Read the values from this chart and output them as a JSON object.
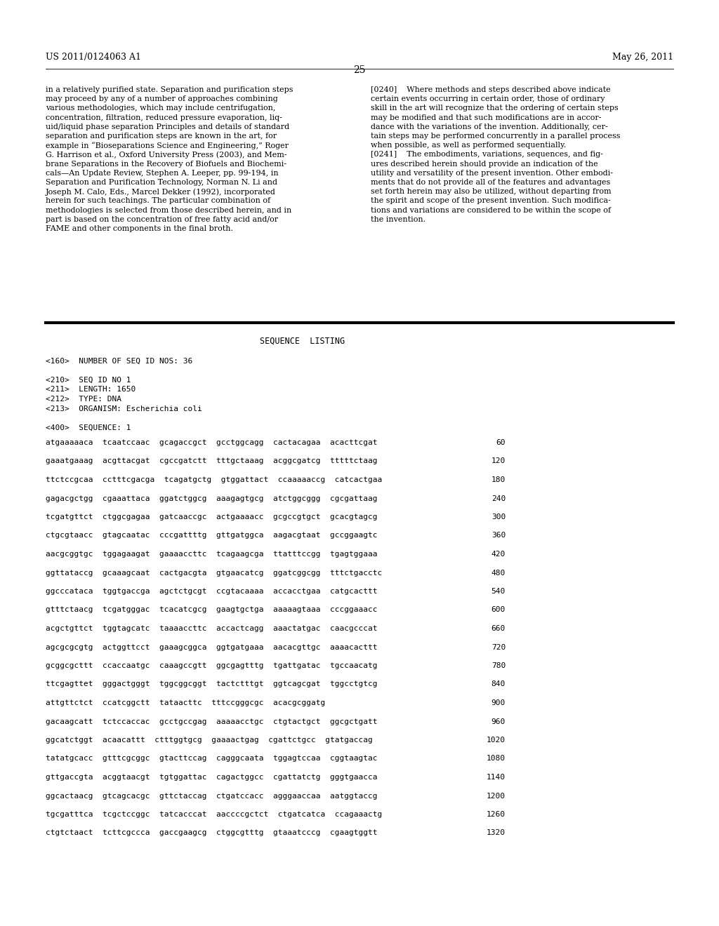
{
  "background_color": "#ffffff",
  "header_left": "US 2011/0124063 A1",
  "header_right": "May 26, 2011",
  "page_number": "25",
  "left_col_text": [
    "in a relatively purified state. Separation and purification steps",
    "may proceed by any of a number of approaches combining",
    "various methodologies, which may include centrifugation,",
    "concentration, filtration, reduced pressure evaporation, liq-",
    "uid/liquid phase separation Principles and details of standard",
    "separation and purification steps are known in the art, for",
    "example in “Bioseparations Science and Engineering,” Roger",
    "G. Harrison et al., Oxford University Press (2003), and Mem-",
    "brane Separations in the Recovery of Biofuels and Biochemi-",
    "cals—An Update Review, Stephen A. Leeper, pp. 99-194, in",
    "Separation and Purification Technology, Norman N. Li and",
    "Joseph M. Calo, Eds., Marcel Dekker (1992), incorporated",
    "herein for such teachings. The particular combination of",
    "methodologies is selected from those described herein, and in",
    "part is based on the concentration of free fatty acid and/or",
    "FAME and other components in the final broth."
  ],
  "right_col_text": [
    "[0240]    Where methods and steps described above indicate",
    "certain events occurring in certain order, those of ordinary",
    "skill in the art will recognize that the ordering of certain steps",
    "may be modified and that such modifications are in accor-",
    "dance with the variations of the invention. Additionally, cer-",
    "tain steps may be performed concurrently in a parallel process",
    "when possible, as well as performed sequentially.",
    "[0241]    The embodiments, variations, sequences, and fig-",
    "ures described herein should provide an indication of the",
    "utility and versatility of the present invention. Other embodi-",
    "ments that do not provide all of the features and advantages",
    "set forth herein may also be utilized, without departing from",
    "the spirit and scope of the present invention. Such modifica-",
    "tions and variations are considered to be within the scope of",
    "the invention."
  ],
  "seq_listing_header": "SEQUENCE  LISTING",
  "seq_meta": [
    "<160>  NUMBER OF SEQ ID NOS: 36",
    "",
    "<210>  SEQ ID NO 1",
    "<211>  LENGTH: 1650",
    "<212>  TYPE: DNA",
    "<213>  ORGANISM: Escherichia coli",
    "",
    "<400>  SEQUENCE: 1"
  ],
  "seq_data": [
    [
      "atgaaaaaca  tcaatccaac  gcagaccgct  gcctggcagg  cactacagaa  acacttcgat",
      "60"
    ],
    [
      "gaaatgaaag  acgttacgat  cgccgatctt  tttgctaaag  acggcgatcg  tttttctaag",
      "120"
    ],
    [
      "ttctccgcaa  cctttcgacga  tcagatgctg  gtggattact  ccaaaaaccg  catcactgaa",
      "180"
    ],
    [
      "gagacgctgg  cgaaattaca  ggatctggcg  aaagagtgcg  atctggcggg  cgcgattaag",
      "240"
    ],
    [
      "tcgatgttct  ctggcgagaa  gatcaaccgc  actgaaaacc  gcgccgtgct  gcacgtagcg",
      "300"
    ],
    [
      "ctgcgtaacc  gtagcaatac  cccgattttg  gttgatggca  aagacgtaat  gccggaagtc",
      "360"
    ],
    [
      "aacgcggtgc  tggagaagat  gaaaaccttc  tcagaagcga  ttatttccgg  tgagtggaaa",
      "420"
    ],
    [
      "ggttataccg  gcaaagcaat  cactgacgta  gtgaacatcg  ggatcggcgg  tttctgacctc",
      "480"
    ],
    [
      "ggcccataca  tggtgaccga  agctctgcgt  ccgtacaaaa  accacctgaa  catgcacttt",
      "540"
    ],
    [
      "gtttctaacg  tcgatgggac  tcacatcgcg  gaagtgctga  aaaaagtaaa  cccggaaacc",
      "600"
    ],
    [
      "acgctgttct  tggtagcatc  taaaaccttc  accactcagg  aaactatgac  caacgcccat",
      "660"
    ],
    [
      "agcgcgcgtg  actggttcct  gaaagcggca  ggtgatgaaa  aacacgttgc  aaaacacttt",
      "720"
    ],
    [
      "gcggcgcttt  ccaccaatgc  caaagccgtt  ggcgagtttg  tgattgatac  tgccaacatg",
      "780"
    ],
    [
      "ttcgagttet  gggactgggt  tggcggcggt  tactctttgt  ggtcagcgat  tggcctgtcg",
      "840"
    ],
    [
      "attgttctct  ccatcggctt  tataacttc  tttccgggcgc  acacgcggatg",
      "900"
    ],
    [
      "gacaagcatt  tctccaccac  gcctgccgag  aaaaacctgc  ctgtactgct  ggcgctgatt",
      "960"
    ],
    [
      "ggcatctggt  acaacattt  ctttggtgcg  gaaaactgag  cgattctgcc  gtatgaccag",
      "1020"
    ],
    [
      "tatatgcacc  gtttcgcggc  gtacttccag  cagggcaata  tggagtccaa  cggtaagtac",
      "1080"
    ],
    [
      "gttgaccgta  acggtaacgt  tgtggattac  cagactggcc  cgattatctg  gggtgaacca",
      "1140"
    ],
    [
      "ggcactaacg  gtcagcacgc  gttctaccag  ctgatccacc  agggaaccaa  aatggtaccg",
      "1200"
    ],
    [
      "tgcgatttca  tcgctccggc  tatcacccat  aaccccgctct  ctgatcatca  ccagaaactg",
      "1260"
    ],
    [
      "ctgtctaact  tcttcgccca  gaccgaagcg  ctggcgtttg  gtaaatcccg  cgaagtggtt",
      "1320"
    ]
  ]
}
